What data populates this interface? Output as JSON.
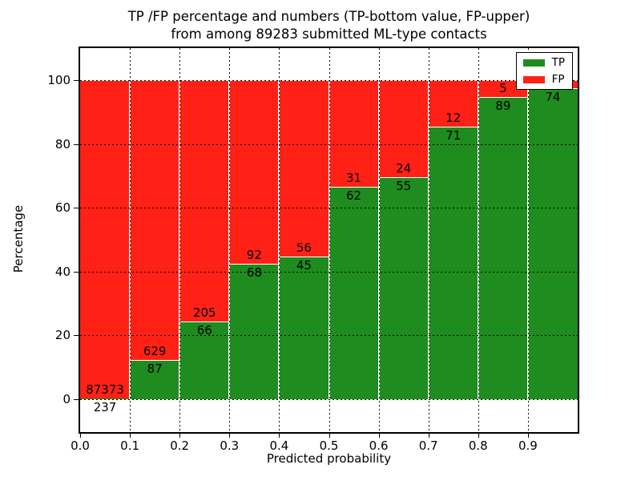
{
  "chart": {
    "title_line1": "TP /FP percentage and numbers (TP-bottom value, FP-upper)",
    "title_line2": "from among 89283 submitted ML-type contacts",
    "xlabel": "Predicted probability",
    "ylabel": "Percentage"
  },
  "chart_data": {
    "type": "bar",
    "stacked": true,
    "title": "TP /FP percentage and numbers (TP-bottom value, FP-upper) from among 89283 submitted ML-type contacts",
    "xlabel": "Predicted probability",
    "ylabel": "Percentage",
    "total_contacts": 89283,
    "bin_start": [
      0.0,
      0.1,
      0.2,
      0.3,
      0.4,
      0.5,
      0.6,
      0.7,
      0.8,
      0.9
    ],
    "bin_width": 0.1,
    "xtick_labels": [
      "0.0",
      "0.1",
      "0.2",
      "0.3",
      "0.4",
      "0.5",
      "0.6",
      "0.7",
      "0.8",
      "0.9"
    ],
    "ytick_values": [
      0,
      20,
      40,
      60,
      80,
      100
    ],
    "xlim": [
      0.0,
      1.0
    ],
    "ylim_display": [
      -10.3,
      110.4
    ],
    "grid": "dotted",
    "legend_position": "upper right",
    "series": [
      {
        "name": "TP",
        "color": "#1e8c1e",
        "counts": [
          237,
          87,
          66,
          68,
          45,
          62,
          55,
          71,
          89,
          74
        ]
      },
      {
        "name": "FP",
        "color": "#ff2116",
        "counts": [
          87373,
          629,
          205,
          92,
          56,
          31,
          24,
          12,
          5,
          null
        ]
      }
    ],
    "tp_percent": [
      0.3,
      12.2,
      24.4,
      42.5,
      44.6,
      66.7,
      69.6,
      85.5,
      94.7,
      97.4
    ],
    "legend": [
      {
        "label": "TP",
        "color": "#1e8c1e"
      },
      {
        "label": "FP",
        "color": "#ff2116"
      }
    ]
  }
}
